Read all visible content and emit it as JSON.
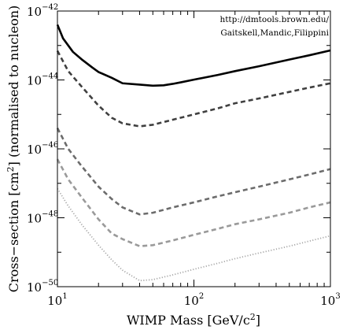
{
  "chart_data": {
    "type": "line",
    "xscale": "log",
    "yscale": "log",
    "xlim": [
      10,
      1000
    ],
    "ylim": [
      1e-50,
      1e-42
    ],
    "x_ticks": [
      {
        "value": 10,
        "label_base": "10",
        "label_exp": "1"
      },
      {
        "value": 100,
        "label_base": "10",
        "label_exp": "2"
      },
      {
        "value": 1000,
        "label_base": "10",
        "label_exp": "3"
      }
    ],
    "y_ticks": [
      {
        "value": 1e-50,
        "label_base": "10",
        "label_exp": "−50"
      },
      {
        "value": 1e-48,
        "label_base": "10",
        "label_exp": "−48"
      },
      {
        "value": 1e-46,
        "label_base": "10",
        "label_exp": "−46"
      },
      {
        "value": 1e-44,
        "label_base": "10",
        "label_exp": "−44"
      },
      {
        "value": 1e-42,
        "label_base": "10",
        "label_exp": "−42"
      }
    ],
    "xlabel": {
      "text": "WIMP Mass [GeV/c",
      "sup": "2",
      "tail": "]"
    },
    "ylabel": {
      "text": "Cross−section [cm",
      "sup": "2",
      "tail": "] (normalised to nucleon)"
    },
    "annotation": [
      "http://dmtools.brown.edu/",
      "Gaitskell,Mandic,Filippini"
    ],
    "grid": false,
    "series": [
      {
        "style": "solid",
        "color": "#000000",
        "width": 2.6,
        "x": [
          10,
          11,
          13,
          15,
          18,
          20,
          25,
          30,
          40,
          50,
          60,
          70,
          80,
          100,
          150,
          200,
          300,
          500,
          700,
          1000
        ],
        "y": [
          4e-43,
          1.6e-43,
          6.5e-44,
          4e-44,
          2.3e-44,
          1.7e-44,
          1.15e-44,
          8e-45,
          7.3e-45,
          6.8e-45,
          7e-45,
          7.7e-45,
          8.5e-45,
          1.02e-44,
          1.4e-44,
          1.8e-44,
          2.5e-44,
          3.9e-44,
          5.2e-44,
          7.2e-44
        ]
      },
      {
        "style": "dashed",
        "color": "#404040",
        "width": 2.6,
        "x": [
          10,
          12,
          15,
          20,
          25,
          30,
          40,
          50,
          70,
          100,
          150,
          200,
          300,
          500,
          700,
          1000
        ],
        "y": [
          7e-44,
          1.8e-44,
          6.5e-45,
          1.8e-45,
          8e-46,
          5.5e-46,
          4.5e-46,
          5e-46,
          7e-46,
          1e-45,
          1.5e-45,
          2.1e-45,
          2.9e-45,
          4.5e-45,
          6e-45,
          8e-45
        ]
      },
      {
        "style": "dashed",
        "color": "#6c6c6c",
        "width": 2.6,
        "x": [
          10,
          12,
          15,
          20,
          25,
          30,
          40,
          50,
          70,
          100,
          150,
          200,
          300,
          500,
          700,
          1000
        ],
        "y": [
          4e-46,
          1e-46,
          3.2e-47,
          8e-48,
          3.5e-48,
          2e-48,
          1.25e-48,
          1.4e-48,
          2e-48,
          2.8e-48,
          4.2e-48,
          5.5e-48,
          8e-48,
          1.3e-47,
          1.8e-47,
          2.6e-47
        ]
      },
      {
        "style": "dashed",
        "color": "#9a9a9a",
        "width": 2.6,
        "x": [
          10,
          12,
          15,
          20,
          25,
          30,
          40,
          50,
          70,
          100,
          150,
          200,
          300,
          500,
          700,
          1000
        ],
        "y": [
          5e-47,
          1.3e-47,
          4e-48,
          9e-49,
          3.5e-49,
          2.4e-49,
          1.5e-49,
          1.6e-49,
          2.2e-49,
          3.2e-49,
          4.8e-49,
          6.5e-49,
          9e-49,
          1.4e-48,
          2e-48,
          2.8e-48
        ]
      },
      {
        "style": "dotted",
        "color": "#a8a8a8",
        "width": 1.8,
        "x": [
          10,
          12,
          15,
          20,
          25,
          30,
          40,
          50,
          70,
          100,
          150,
          200,
          300,
          500,
          700,
          1000
        ],
        "y": [
          7e-48,
          2.2e-48,
          6.5e-49,
          1.6e-49,
          6e-50,
          3e-50,
          1.5e-50,
          1.6e-50,
          2.2e-50,
          3.2e-50,
          4.8e-50,
          6.5e-50,
          9.5e-50,
          1.5e-49,
          2.1e-49,
          3e-49
        ]
      }
    ]
  }
}
